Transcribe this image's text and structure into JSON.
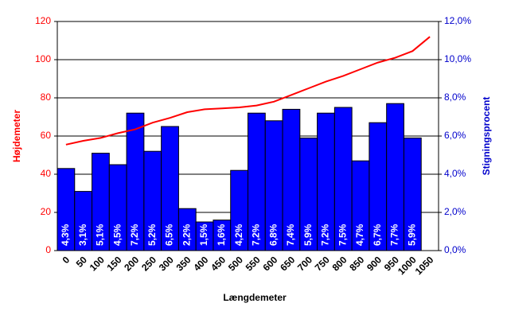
{
  "chart_data": {
    "type": "combo",
    "x_label": "Længdemeter",
    "y_label": "Højdemeter",
    "y2_label": "Stigningsprocent",
    "categories": [
      "0",
      "50",
      "100",
      "150",
      "200",
      "250",
      "300",
      "350",
      "400",
      "450",
      "500",
      "550",
      "600",
      "650",
      "700",
      "750",
      "800",
      "850",
      "900",
      "950",
      "1000",
      "1050"
    ],
    "ylim": [
      0,
      120
    ],
    "yticks": [
      0,
      20,
      40,
      60,
      80,
      100,
      120
    ],
    "y2lim": [
      0,
      12
    ],
    "y2ticks": [
      {
        "value": 0,
        "label": "0,0%"
      },
      {
        "value": 2,
        "label": "2,0%"
      },
      {
        "value": 4,
        "label": "4,0%"
      },
      {
        "value": 6,
        "label": "6,0%"
      },
      {
        "value": 8,
        "label": "8,0%"
      },
      {
        "value": 10,
        "label": "10,0%"
      },
      {
        "value": 12,
        "label": "12,0%"
      }
    ],
    "grid": true,
    "y_color": "#ff0000",
    "y2_color": "#0000cc",
    "series": [
      {
        "type": "bar",
        "axis": "y2",
        "color": "#0000ff",
        "values": [
          4.3,
          3.1,
          5.1,
          4.5,
          7.2,
          5.2,
          6.5,
          2.2,
          1.5,
          1.6,
          4.2,
          7.2,
          6.8,
          7.4,
          5.9,
          7.2,
          7.5,
          4.7,
          6.7,
          7.7,
          5.9,
          null
        ],
        "value_labels": [
          "4,3%",
          "3,1%",
          "5,1%",
          "4,5%",
          "7,2%",
          "5,2%",
          "6,5%",
          "2,2%",
          "1,5%",
          "1,6%",
          "4,2%",
          "7,2%",
          "6,8%",
          "7,4%",
          "5,9%",
          "7,2%",
          "7,5%",
          "4,7%",
          "6,7%",
          "7,7%",
          "5,9%",
          null
        ]
      },
      {
        "type": "line",
        "axis": "y",
        "color": "#ff0000",
        "values": [
          55.5,
          57.5,
          59,
          61.5,
          63.5,
          67,
          69.5,
          72.5,
          74,
          74.5,
          75,
          76,
          78,
          81.5,
          85,
          88.5,
          91.5,
          95,
          98.5,
          101,
          104.5,
          112
        ]
      }
    ]
  }
}
